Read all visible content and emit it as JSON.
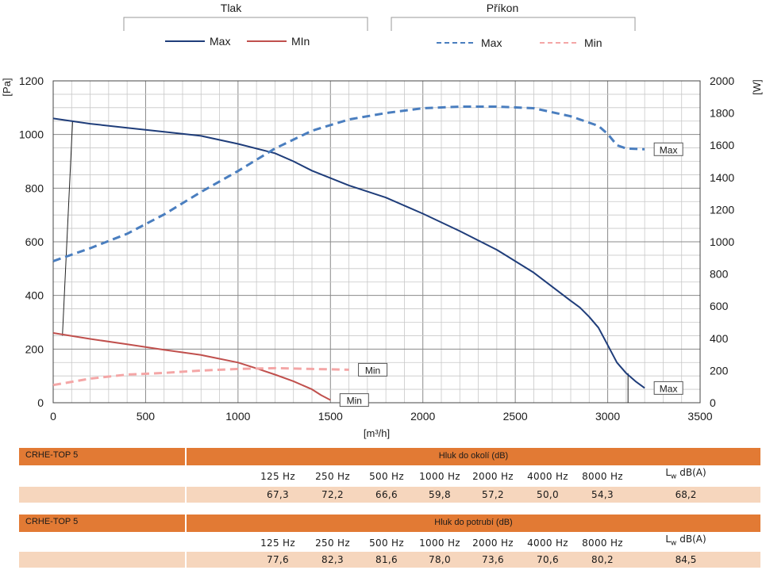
{
  "legend": {
    "tlak_title": "Tlak",
    "prikon_title": "Příkon",
    "tlak_max": "Max",
    "tlak_min": "MIn",
    "prikon_max": "Max",
    "prikon_min": "Min"
  },
  "colors": {
    "tlak_max": "#1f3d7a",
    "tlak_min": "#c0504d",
    "prikon_max": "#4a7ebf",
    "prikon_min": "#f4a6a6",
    "grid": "#9a9a9a",
    "table_header": "#e27a34",
    "table_row": "#f6d6bd"
  },
  "chart_data": {
    "type": "line",
    "xlabel": "[m³/h]",
    "ylabel_left": "[Pa]",
    "ylabel_right": "[W]",
    "xlim": [
      0,
      3500
    ],
    "ylim_left": [
      0,
      1200
    ],
    "ylim_right": [
      0,
      2000
    ],
    "x_ticks": [
      0,
      500,
      1000,
      1500,
      2000,
      2500,
      3000,
      3500
    ],
    "y_ticks_left": [
      0,
      200,
      400,
      600,
      800,
      1000,
      1200
    ],
    "y_ticks_right": [
      0,
      200,
      400,
      600,
      800,
      1000,
      1200,
      1400,
      1600,
      1800,
      2000
    ],
    "grid": true,
    "series": [
      {
        "name": "Max",
        "group": "Tlak",
        "axis": "left",
        "style": "solid",
        "end_label": "Max",
        "points": [
          [
            0,
            1060
          ],
          [
            200,
            1040
          ],
          [
            400,
            1025
          ],
          [
            600,
            1010
          ],
          [
            800,
            995
          ],
          [
            1000,
            965
          ],
          [
            1200,
            930
          ],
          [
            1300,
            900
          ],
          [
            1400,
            865
          ],
          [
            1600,
            810
          ],
          [
            1800,
            765
          ],
          [
            2000,
            705
          ],
          [
            2200,
            640
          ],
          [
            2400,
            570
          ],
          [
            2600,
            485
          ],
          [
            2800,
            380
          ],
          [
            2850,
            355
          ],
          [
            2900,
            320
          ],
          [
            2950,
            280
          ],
          [
            3000,
            215
          ],
          [
            3050,
            150
          ],
          [
            3100,
            110
          ],
          [
            3150,
            80
          ],
          [
            3200,
            55
          ]
        ]
      },
      {
        "name": "MIn",
        "group": "Tlak",
        "axis": "left",
        "style": "solid",
        "end_label": "Min",
        "points": [
          [
            0,
            260
          ],
          [
            200,
            238
          ],
          [
            400,
            218
          ],
          [
            600,
            197
          ],
          [
            800,
            178
          ],
          [
            1000,
            150
          ],
          [
            1100,
            128
          ],
          [
            1200,
            105
          ],
          [
            1300,
            80
          ],
          [
            1400,
            50
          ],
          [
            1450,
            28
          ],
          [
            1500,
            10
          ]
        ]
      },
      {
        "name": "Max",
        "group": "Příkon",
        "axis": "right",
        "style": "dashed",
        "end_label": "Max",
        "points": [
          [
            0,
            880
          ],
          [
            200,
            960
          ],
          [
            400,
            1050
          ],
          [
            600,
            1170
          ],
          [
            800,
            1310
          ],
          [
            1000,
            1440
          ],
          [
            1200,
            1580
          ],
          [
            1400,
            1690
          ],
          [
            1600,
            1760
          ],
          [
            1800,
            1800
          ],
          [
            2000,
            1830
          ],
          [
            2200,
            1840
          ],
          [
            2400,
            1840
          ],
          [
            2600,
            1830
          ],
          [
            2800,
            1780
          ],
          [
            2950,
            1720
          ],
          [
            3000,
            1670
          ],
          [
            3050,
            1600
          ],
          [
            3100,
            1580
          ],
          [
            3200,
            1575
          ]
        ]
      },
      {
        "name": "Min",
        "group": "Příkon",
        "axis": "right",
        "style": "dashed",
        "end_label": "Min",
        "points": [
          [
            0,
            110
          ],
          [
            200,
            150
          ],
          [
            400,
            175
          ],
          [
            600,
            185
          ],
          [
            800,
            200
          ],
          [
            1000,
            210
          ],
          [
            1200,
            215
          ],
          [
            1400,
            210
          ],
          [
            1600,
            205
          ]
        ]
      }
    ],
    "reference_lines": [
      {
        "axis": "left",
        "points": [
          [
            50,
            250
          ],
          [
            105,
            1050
          ]
        ]
      },
      {
        "axis": "left",
        "points": [
          [
            3110,
            110
          ],
          [
            3110,
            0
          ]
        ]
      }
    ]
  },
  "table_okoli": {
    "model": "CRHE-TOP 5",
    "title": "Hluk do okolí (dB)",
    "freqs": [
      "125 Hz",
      "250 Hz",
      "500 Hz",
      "1000 Hz",
      "2000 Hz",
      "4000 Hz",
      "8000 Hz"
    ],
    "values": [
      "67,3",
      "72,2",
      "66,6",
      "59,8",
      "57,2",
      "50,0",
      "54,3"
    ],
    "lw_main": "L",
    "lw_sub": "w",
    "lw_unit": " dB(A)",
    "lw_value": "68,2"
  },
  "table_potrubi": {
    "model": "CRHE-TOP 5",
    "title": "Hluk do potrubí (dB)",
    "freqs": [
      "125 Hz",
      "250 Hz",
      "500 Hz",
      "1000 Hz",
      "2000 Hz",
      "4000 Hz",
      "8000 Hz"
    ],
    "values": [
      "77,6",
      "82,3",
      "81,6",
      "78,0",
      "73,6",
      "70,6",
      "80,2"
    ],
    "lw_main": "L",
    "lw_sub": "w",
    "lw_unit": " dB(A)",
    "lw_value": "84,5"
  }
}
